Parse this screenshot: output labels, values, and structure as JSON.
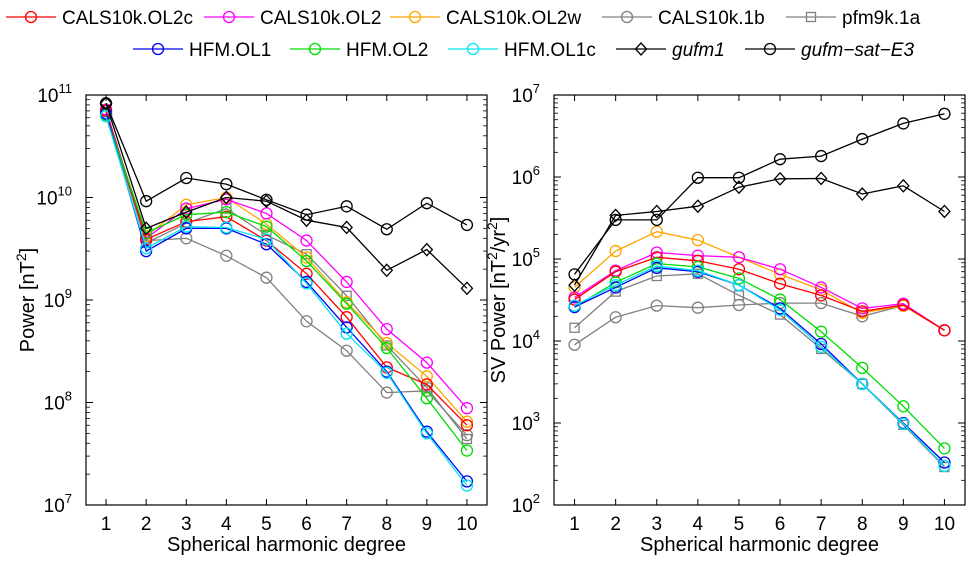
{
  "legend": [
    {
      "key": "cals2c",
      "label": "CALS10k.OL2c",
      "italic": false
    },
    {
      "key": "cals2",
      "label": "CALS10k.OL2",
      "italic": false
    },
    {
      "key": "cals2w",
      "label": "CALS10k.OL2w",
      "italic": false
    },
    {
      "key": "cals1b",
      "label": "CALS10k.1b",
      "italic": false
    },
    {
      "key": "pfm",
      "label": "pfm9k.1a",
      "italic": false
    },
    {
      "key": "hfm1",
      "label": "HFM.OL1",
      "italic": false
    },
    {
      "key": "hfm2",
      "label": "HFM.OL2",
      "italic": false
    },
    {
      "key": "hfm1c",
      "label": "HFM.OL1c",
      "italic": false
    },
    {
      "key": "gufm1",
      "label": "gufm1",
      "italic": true
    },
    {
      "key": "gufmsat",
      "label": "gufm−sat−E3",
      "italic": true
    }
  ],
  "styles": {
    "cals2c": {
      "color": "#ff0000",
      "marker": "circle"
    },
    "cals2": {
      "color": "#ff00ff",
      "marker": "circle"
    },
    "cals2w": {
      "color": "#ffa500",
      "marker": "circle"
    },
    "cals1b": {
      "color": "#808080",
      "marker": "circle"
    },
    "pfm": {
      "color": "#808080",
      "marker": "square"
    },
    "hfm1": {
      "color": "#0000ff",
      "marker": "circle"
    },
    "hfm2": {
      "color": "#00dd00",
      "marker": "circle"
    },
    "hfm1c": {
      "color": "#00e5ee",
      "marker": "circle"
    },
    "gufm1": {
      "color": "#000000",
      "marker": "diamond"
    },
    "gufmsat": {
      "color": "#000000",
      "marker": "circle"
    }
  },
  "chart_data": [
    {
      "type": "line",
      "xlabel": "Spherical harmonic degree",
      "ylabel": "Power [nT²]",
      "ylabel_parts": [
        "Power [nT",
        "2",
        "]"
      ],
      "yscale": "log",
      "xlim": [
        0.5,
        10.5
      ],
      "ylim": [
        10000000.0,
        100000000000.0
      ],
      "x": [
        1,
        2,
        3,
        4,
        5,
        6,
        7,
        8,
        9,
        10
      ],
      "yticks": [
        {
          "v": 10000000.0,
          "e": "7"
        },
        {
          "v": 100000000.0,
          "e": "8"
        },
        {
          "v": 1000000000.0,
          "e": "9"
        },
        {
          "v": 10000000000.0,
          "e": "10"
        },
        {
          "v": 100000000000.0,
          "e": "11"
        }
      ],
      "series": [
        {
          "key": "cals1b",
          "values": [
            65000000000.0,
            3800000000.0,
            4000000000.0,
            2700000000.0,
            1650000000.0,
            620000000.0,
            320000000.0,
            125000000.0,
            130000000.0,
            48000000.0
          ]
        },
        {
          "key": "pfm",
          "values": [
            68000000000.0,
            3600000000.0,
            5600000000.0,
            7800000000.0,
            4300000000.0,
            2800000000.0,
            1100000000.0,
            360000000.0,
            140000000.0,
            44000000.0
          ]
        },
        {
          "key": "cals2w",
          "values": [
            70000000000.0,
            4200000000.0,
            8500000000.0,
            10000000000.0,
            5500000000.0,
            2600000000.0,
            950000000.0,
            380000000.0,
            180000000.0,
            65000000.0
          ]
        },
        {
          "key": "cals2",
          "values": [
            72000000000.0,
            4000000000.0,
            7800000000.0,
            9600000000.0,
            7000000000.0,
            3800000000.0,
            1500000000.0,
            520000000.0,
            245000000.0,
            88000000.0
          ]
        },
        {
          "key": "cals2c",
          "values": [
            70000000000.0,
            3900000000.0,
            5800000000.0,
            6500000000.0,
            3800000000.0,
            1800000000.0,
            680000000.0,
            220000000.0,
            150000000.0,
            60000000.0
          ]
        },
        {
          "key": "hfm2",
          "values": [
            64000000000.0,
            4500000000.0,
            6800000000.0,
            7200000000.0,
            5200000000.0,
            2400000000.0,
            920000000.0,
            340000000.0,
            110000000.0,
            34000000.0
          ]
        },
        {
          "key": "hfm1",
          "values": [
            66000000000.0,
            3000000000.0,
            5000000000.0,
            5000000000.0,
            3500000000.0,
            1500000000.0,
            540000000.0,
            200000000.0,
            52000000.0,
            17000000.0
          ]
        },
        {
          "key": "hfm1c",
          "values": [
            62000000000.0,
            3200000000.0,
            5200000000.0,
            5100000000.0,
            3900000000.0,
            1450000000.0,
            470000000.0,
            195000000.0,
            50000000.0,
            15500000.0
          ]
        },
        {
          "key": "gufm1",
          "values": [
            83000000000.0,
            5000000000.0,
            7200000000.0,
            10000000000.0,
            9200000000.0,
            6000000000.0,
            5100000000.0,
            1950000000.0,
            3100000000.0,
            1300000000.0
          ]
        },
        {
          "key": "gufmsat",
          "values": [
            83000000000.0,
            9200000000.0,
            15500000000.0,
            13500000000.0,
            9500000000.0,
            6800000000.0,
            8200000000.0,
            4900000000.0,
            8800000000.0,
            5400000000.0
          ]
        }
      ]
    },
    {
      "type": "line",
      "xlabel": "Spherical harmonic degree",
      "ylabel": "SV Power [nT²/yr²]",
      "ylabel_parts": [
        "SV Power [nT",
        "2",
        "/yr",
        "2",
        "]"
      ],
      "yscale": "log",
      "xlim": [
        0.5,
        10.5
      ],
      "ylim": [
        100.0,
        10000000.0
      ],
      "x": [
        1,
        2,
        3,
        4,
        5,
        6,
        7,
        8,
        9,
        10
      ],
      "yticks": [
        {
          "v": 100.0,
          "e": "2"
        },
        {
          "v": 1000.0,
          "e": "3"
        },
        {
          "v": 10000.0,
          "e": "4"
        },
        {
          "v": 100000.0,
          "e": "5"
        },
        {
          "v": 1000000.0,
          "e": "6"
        },
        {
          "v": 10000000.0,
          "e": "7"
        }
      ],
      "series": [
        {
          "key": "cals1b",
          "values": [
            9000,
            19500,
            27000,
            25500,
            27500,
            29000,
            29000,
            20000,
            27000,
            13500
          ]
        },
        {
          "key": "pfm",
          "values": [
            14500,
            40000,
            62000,
            66000,
            36000,
            21000,
            8000,
            3000,
            950,
            290
          ]
        },
        {
          "key": "cals2w",
          "values": [
            45000,
            125000,
            215000,
            170000,
            105000,
            65000,
            42000,
            22000,
            27000,
            13500
          ]
        },
        {
          "key": "cals2",
          "values": [
            34000,
            72000,
            120000,
            110000,
            105000,
            75000,
            45000,
            25000,
            28500,
            13500
          ]
        },
        {
          "key": "cals2c",
          "values": [
            32000,
            70000,
            105000,
            95000,
            75000,
            50000,
            36000,
            23000,
            27500,
            13500
          ]
        },
        {
          "key": "hfm2",
          "values": [
            26000,
            52000,
            88000,
            80000,
            58000,
            32000,
            13000,
            4700,
            1600,
            490
          ]
        },
        {
          "key": "hfm1",
          "values": [
            26000,
            45000,
            78000,
            70000,
            48000,
            25000,
            9200,
            3000,
            1000,
            330
          ]
        },
        {
          "key": "hfm1c",
          "values": [
            27000,
            48000,
            82000,
            72000,
            48000,
            24000,
            8500,
            3000,
            980,
            300
          ]
        },
        {
          "key": "gufm1",
          "values": [
            48000,
            340000,
            380000,
            440000,
            750000,
            950000,
            960000,
            620000,
            780000,
            380000
          ]
        },
        {
          "key": "gufmsat",
          "values": [
            65000,
            300000,
            300000,
            980000,
            980000,
            1650000,
            1800000,
            2900000,
            4500000,
            5900000
          ]
        }
      ]
    }
  ]
}
